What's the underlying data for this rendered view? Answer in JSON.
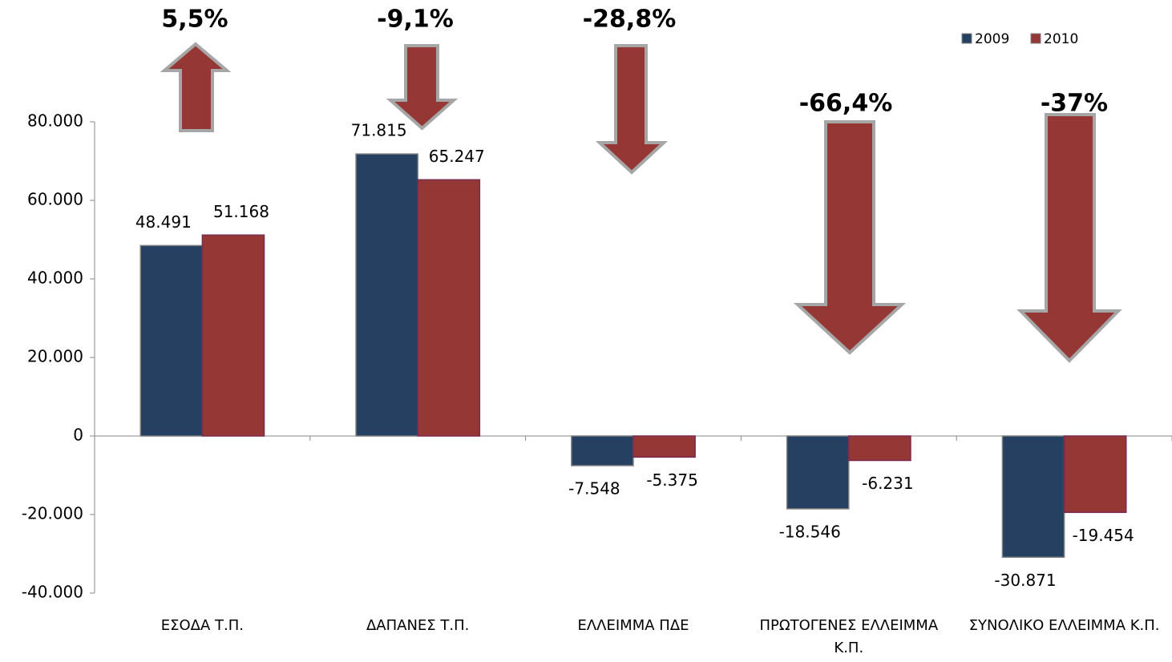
{
  "chart_data": {
    "type": "bar",
    "categories": [
      "ΕΣΟΔΑ Τ.Π.",
      "ΔΑΠΑΝΕΣ  Τ.Π.",
      "ΕΛΛΕΙΜΜΑ ΠΔΕ",
      "ΠΡΩΤΟΓΕΝΕΣ ΕΛΛΕΙΜΜΑ Κ.Π.",
      "ΣΥΝΟΛΙΚΟ ΕΛΛΕΙΜΜΑ Κ.Π."
    ],
    "series": [
      {
        "name": "2009",
        "color": "#254061",
        "values": [
          48491,
          71815,
          -7548,
          -18546,
          -30871
        ],
        "value_labels": [
          "48.491",
          "71.815",
          "-7.548",
          "-18.546",
          "-30.871"
        ]
      },
      {
        "name": "2010",
        "color": "#953735",
        "values": [
          51168,
          65247,
          -5375,
          -6231,
          -19454
        ],
        "value_labels": [
          "51.168",
          "65.247",
          "-5.375",
          "-6.231",
          "-19.454"
        ]
      }
    ],
    "ylim": [
      -40000,
      80000
    ],
    "yticks": [
      {
        "value": -40000,
        "label": "-40.000"
      },
      {
        "value": -20000,
        "label": "-20.000"
      },
      0,
      {
        "value": 20000,
        "label": "20.000"
      },
      {
        "value": 40000,
        "label": "40.000"
      },
      {
        "value": 60000,
        "label": "60.000"
      },
      {
        "value": 80000,
        "label": "80.000"
      }
    ],
    "legend": "top-right",
    "annotations": [
      {
        "text": "5,5%",
        "direction": "up"
      },
      {
        "text": "-9,1%",
        "direction": "down"
      },
      {
        "text": "-28,8%",
        "direction": "down"
      },
      {
        "text": "-66,4%",
        "direction": "down"
      },
      {
        "text": "-37%",
        "direction": "down"
      }
    ]
  }
}
